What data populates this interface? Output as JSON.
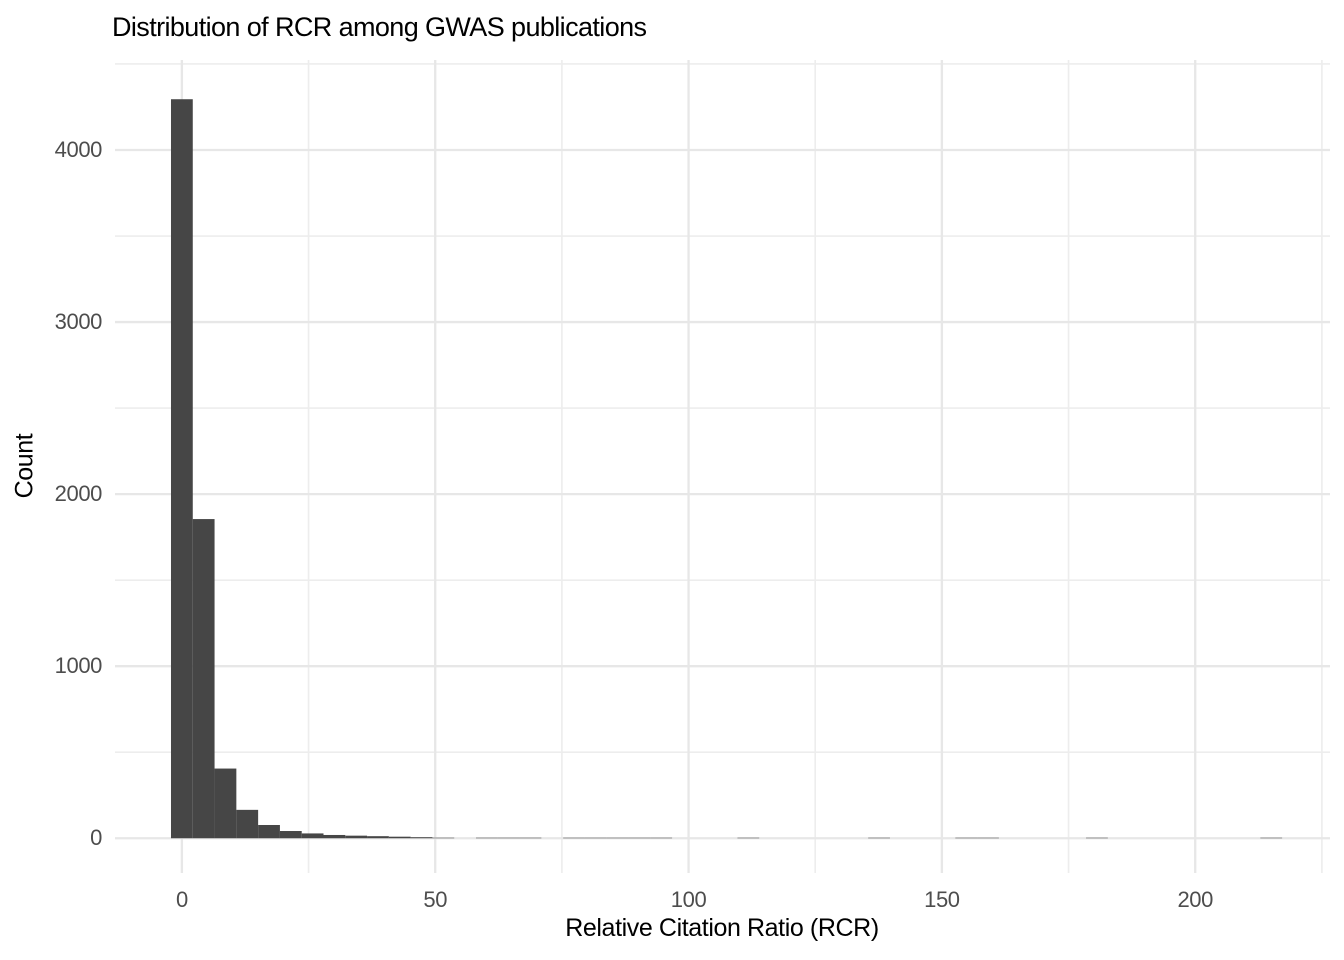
{
  "chart_data": {
    "type": "bar",
    "subtype": "histogram",
    "title": "Distribution of RCR among GWAS publications",
    "xlabel": "Relative Citation Ratio (RCR)",
    "ylabel": "Count",
    "legend": "none",
    "grid": "major-and-minor",
    "x_tick_values": [
      0,
      50,
      100,
      150,
      200
    ],
    "x_tick_labels": [
      "0",
      "50",
      "100",
      "150",
      "200"
    ],
    "y_tick_values": [
      0,
      1000,
      2000,
      3000,
      4000
    ],
    "y_tick_labels": [
      "0",
      "1000",
      "2000",
      "3000",
      "4000"
    ],
    "x_minor_tick_values": [
      25,
      75,
      125,
      175,
      225
    ],
    "y_minor_tick_values": [
      500,
      1500,
      2500,
      3500,
      4500
    ],
    "xlim": [
      -13.2,
      226.6
    ],
    "ylim": [
      -202,
      4523
    ],
    "bin_width": 4.3,
    "bin_centers": [
      0,
      4.3,
      8.6,
      12.9,
      17.2,
      21.5,
      25.8,
      30.1,
      34.4,
      38.7,
      43,
      47.3,
      51.6,
      55.9,
      60.2,
      64.5,
      68.8,
      73.1,
      77.4,
      81.7,
      86,
      90.3,
      94.6,
      98.9,
      103.2,
      107.5,
      111.8,
      116.1,
      120.4,
      124.7,
      129,
      133.3,
      137.6,
      141.9,
      146.2,
      150.5,
      154.8,
      159.1,
      163.4,
      167.7,
      172,
      176.3,
      180.6,
      184.9,
      189.2,
      193.5,
      197.8,
      202.1,
      206.4,
      210.7,
      215
    ],
    "counts": [
      4295,
      1855,
      405,
      165,
      77,
      42,
      28,
      19,
      15,
      12,
      9,
      6,
      3,
      0,
      3,
      3,
      3,
      0,
      2,
      2,
      1,
      1,
      2,
      0,
      0,
      0,
      1,
      0,
      0,
      0,
      0,
      0,
      1,
      0,
      0,
      0,
      1,
      1,
      0,
      0,
      0,
      0,
      1,
      0,
      0,
      0,
      0,
      0,
      0,
      0,
      1
    ],
    "colors": {
      "bar": "#464646",
      "grid_major": "#e7e7e7",
      "grid_minor": "#ededed",
      "tick_label": "#4d4d4d",
      "title": "#000000",
      "axis_title": "#000000",
      "background": "#ffffff"
    }
  }
}
